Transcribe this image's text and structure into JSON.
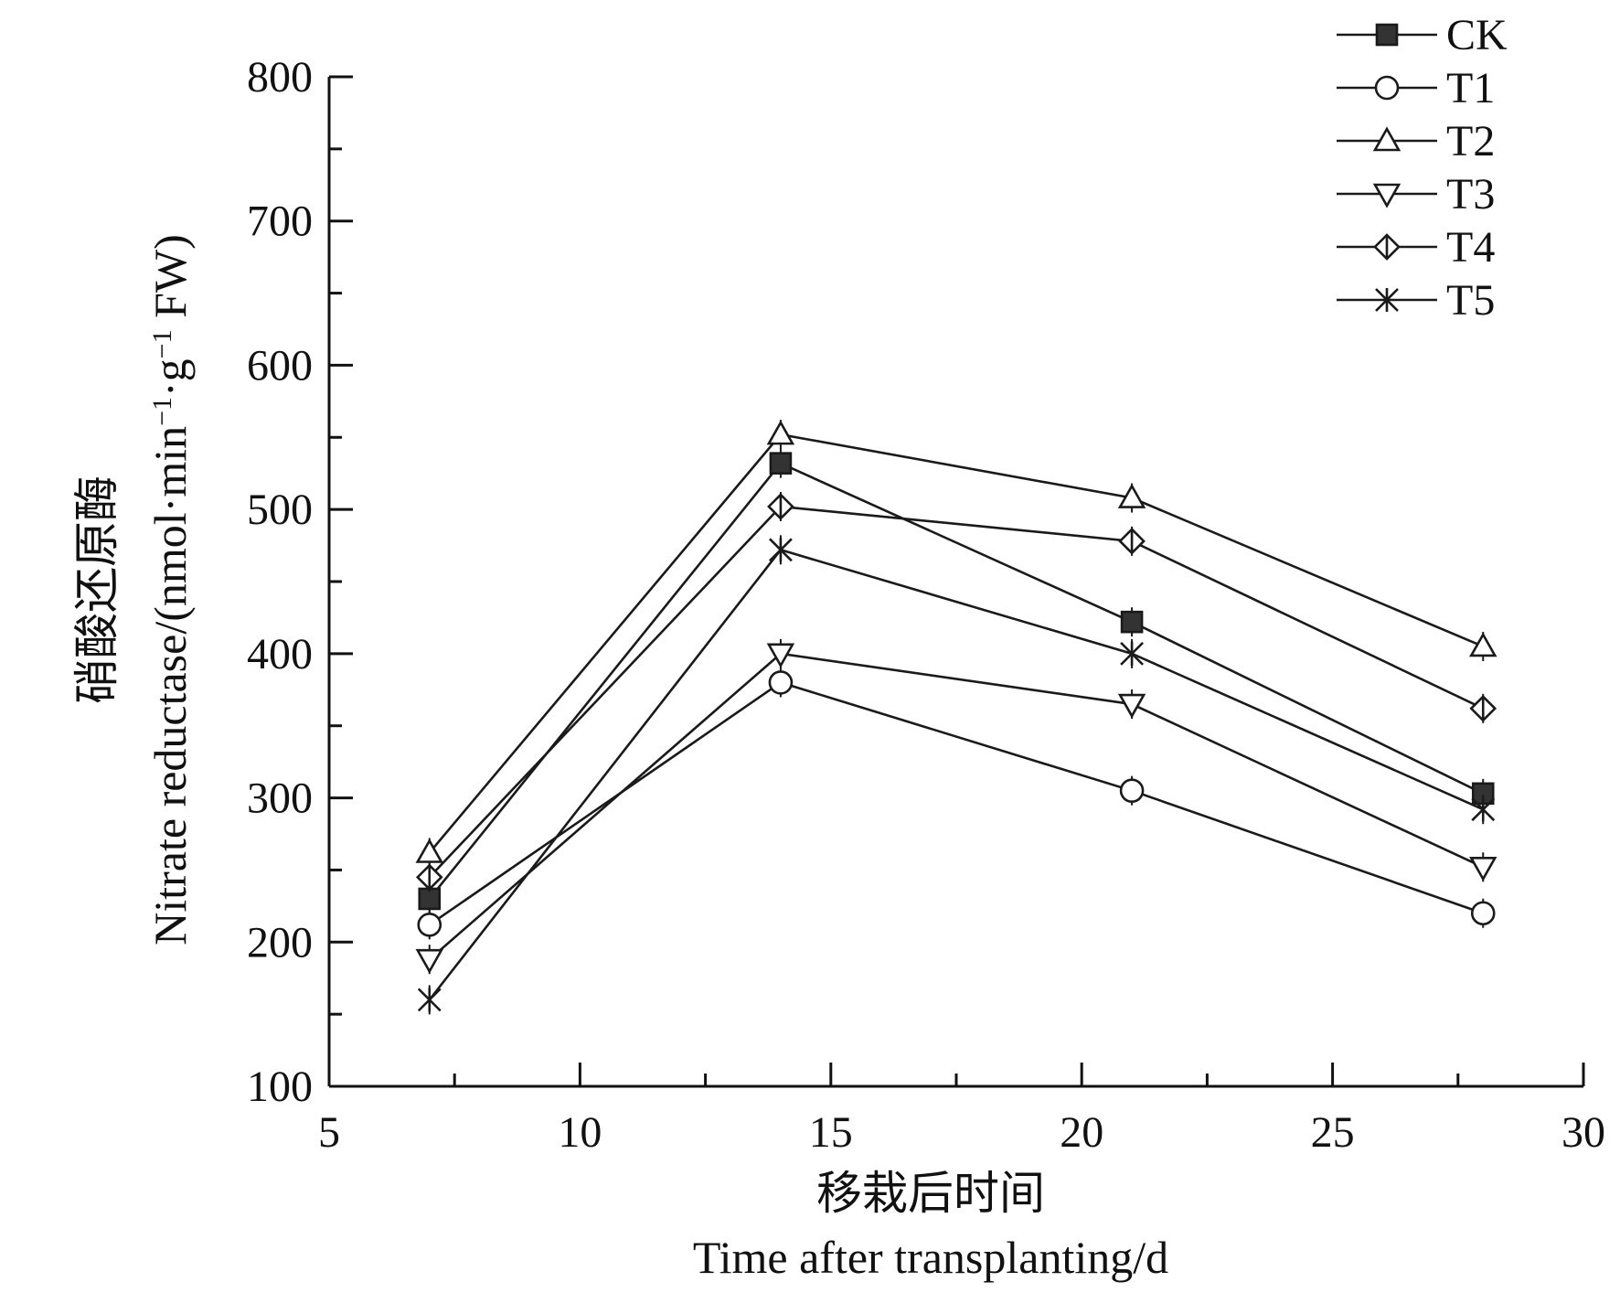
{
  "chart_data": {
    "type": "line",
    "title": "",
    "xlabel_cn": "移栽后时间",
    "xlabel_en": "Time after transplanting/d",
    "ylabel_cn": "硝酸还原酶",
    "ylabel_en_prefix": "Nitrate reductase/(nmol·min",
    "ylabel_en_mid": "·g",
    "ylabel_en_suffix": " FW)",
    "ylabel_exponent": "−1",
    "xlim": [
      5,
      30
    ],
    "ylim": [
      100,
      800
    ],
    "x_ticks": [
      5,
      10,
      15,
      20,
      25,
      30
    ],
    "y_ticks": [
      100,
      200,
      300,
      400,
      500,
      600,
      700,
      800
    ],
    "x": [
      7,
      14,
      21,
      28
    ],
    "series": [
      {
        "name": "CK",
        "marker": "square-filled",
        "values": [
          230,
          532,
          422,
          303
        ]
      },
      {
        "name": "T1",
        "marker": "circle-open",
        "values": [
          212,
          380,
          305,
          220
        ]
      },
      {
        "name": "T2",
        "marker": "triangle-up-open",
        "values": [
          262,
          552,
          508,
          405
        ]
      },
      {
        "name": "T3",
        "marker": "triangle-down-open",
        "values": [
          188,
          400,
          365,
          252
        ]
      },
      {
        "name": "T4",
        "marker": "diamond-half",
        "values": [
          245,
          502,
          478,
          362
        ]
      },
      {
        "name": "T5",
        "marker": "x-star",
        "values": [
          160,
          472,
          400,
          292
        ]
      }
    ],
    "legend_position": "top-right",
    "grid": false
  }
}
